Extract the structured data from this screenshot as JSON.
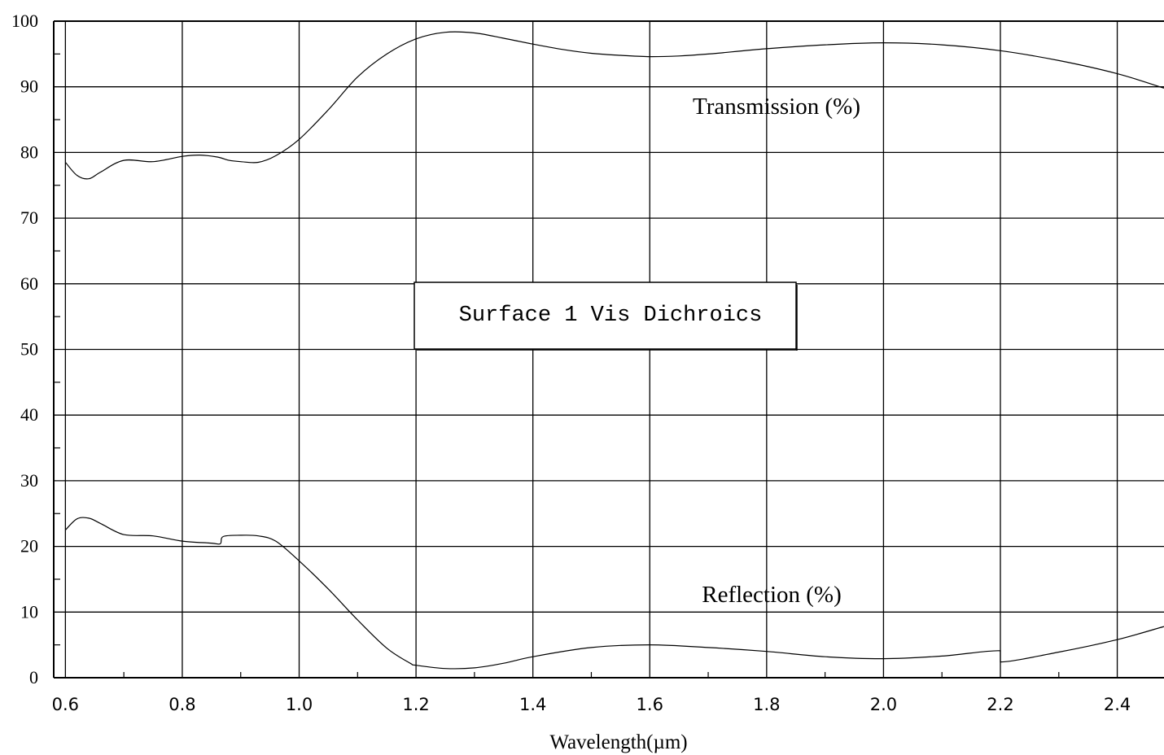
{
  "chart_data": {
    "type": "line",
    "title": "Surface 1 Vis Dichroics",
    "xlabel": "Wavelength(µm)",
    "ylabel": "",
    "xlim": [
      0.58,
      2.48
    ],
    "ylim": [
      0,
      100
    ],
    "x_ticks": [
      "0.6",
      "0.8",
      "1.0",
      "1.2",
      "1.4",
      "1.6",
      "1.8",
      "2.0",
      "2.2",
      "2.4"
    ],
    "y_ticks": [
      "0",
      "10",
      "20",
      "30",
      "40",
      "50",
      "60",
      "70",
      "80",
      "90",
      "100"
    ],
    "grid": true,
    "series": [
      {
        "name": "Transmission (%)",
        "x": [
          0.6,
          0.62,
          0.64,
          0.66,
          0.7,
          0.75,
          0.8,
          0.83,
          0.86,
          0.88,
          0.9,
          0.93,
          0.96,
          1.0,
          1.05,
          1.1,
          1.15,
          1.2,
          1.25,
          1.3,
          1.35,
          1.4,
          1.45,
          1.5,
          1.55,
          1.6,
          1.65,
          1.7,
          1.8,
          1.9,
          2.0,
          2.1,
          2.2,
          2.3,
          2.4,
          2.48
        ],
        "values": [
          78.5,
          76.5,
          76,
          77,
          78.8,
          78.6,
          79.4,
          79.6,
          79.3,
          78.8,
          78.6,
          78.5,
          79.5,
          82,
          86.5,
          91.5,
          95,
          97.3,
          98.3,
          98.2,
          97.4,
          96.5,
          95.7,
          95.1,
          94.8,
          94.6,
          94.7,
          95,
          95.8,
          96.4,
          96.7,
          96.4,
          95.5,
          94,
          92,
          89.8
        ]
      },
      {
        "name": "Reflection (%)",
        "x": [
          0.6,
          0.62,
          0.64,
          0.66,
          0.7,
          0.75,
          0.8,
          0.85,
          0.865,
          0.87,
          0.9,
          0.93,
          0.96,
          1.0,
          1.05,
          1.1,
          1.15,
          1.19,
          1.2,
          1.25,
          1.3,
          1.35,
          1.4,
          1.5,
          1.6,
          1.7,
          1.8,
          1.9,
          2.0,
          2.1,
          2.2,
          2.2,
          2.3,
          2.4,
          2.48
        ],
        "values": [
          22.5,
          24.2,
          24.3,
          23.5,
          21.8,
          21.6,
          20.8,
          20.5,
          20.4,
          21.5,
          21.7,
          21.6,
          20.8,
          17.8,
          13.5,
          8.8,
          4.5,
          2.2,
          1.9,
          1.4,
          1.5,
          2.2,
          3.2,
          4.6,
          5,
          4.6,
          4,
          3.2,
          2.9,
          3.3,
          4.1,
          2.4,
          3.9,
          5.8,
          7.8
        ]
      }
    ]
  }
}
